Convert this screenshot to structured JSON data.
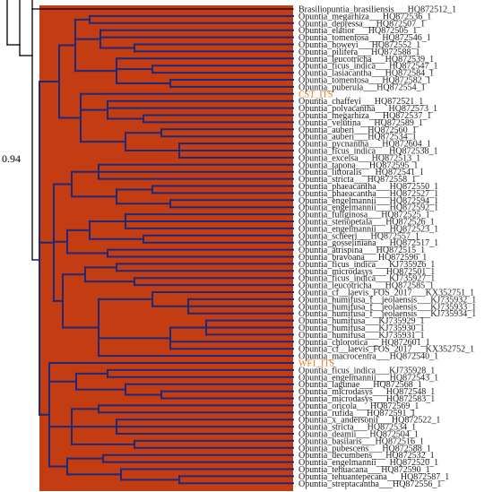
{
  "colors": {
    "clade_fill": "#c43c12",
    "branch": "#1e2a78",
    "outer_branch": "#000000",
    "highlight_label": "#e0701f",
    "label": "#222222"
  },
  "support_value": "0.94",
  "taxa": [
    {
      "label": "Brasiliopuntia_brasiliensis___HQ872512_1"
    },
    {
      "label": "Opuntia_megarhiza___HQ872536_1"
    },
    {
      "label": "Opuntia_depressa___HQ872507_1"
    },
    {
      "label": "Opuntia_elatior___HQ872505_1"
    },
    {
      "label": "Opuntia_tomentosa___HQ872546_1"
    },
    {
      "label": "Opuntia_howeyi___HQ872552_1"
    },
    {
      "label": "Opuntia_pilifera___HQ872588_1"
    },
    {
      "label": "Opuntia_leucotricha___HQ872539_1"
    },
    {
      "label": "Opuntia_ficus_indica___HQ872547_1"
    },
    {
      "label": "Opuntia_lasiacantha___HQ872584_1"
    },
    {
      "label": "Opuntia_tomentosa___HQ872582_1"
    },
    {
      "label": "Opuntia_puberula___HQ872554_1"
    },
    {
      "label": "CST_ITS",
      "highlight": true
    },
    {
      "label": "Opuntia_chaffeyi___HQ872521_1"
    },
    {
      "label": "Opuntia_polyacantha___HQ872573_1"
    },
    {
      "label": "Opuntia_megarhiza___HQ872537_1"
    },
    {
      "label": "Opuntia_velutina___HQ872589_1"
    },
    {
      "label": "Opuntia_auberi___HQ872560_1"
    },
    {
      "label": "Opuntia_auberi___HQ872534_1"
    },
    {
      "label": "Opuntia_pycnantha___HQ872604_1"
    },
    {
      "label": "Opuntia_ficus_indica___HQ872538_1"
    },
    {
      "label": "Opuntia_excelsa___HQ872513_1"
    },
    {
      "label": "Opuntia_tapona___HQ872595_1"
    },
    {
      "label": "Opuntia_littoralis___HQ872541_1"
    },
    {
      "label": "Opuntia_stricta___HQ872558_1"
    },
    {
      "label": "Opuntia_phaeacantha___HQ872550_1"
    },
    {
      "label": "Opuntia_phaeacantha___HQ872527_1"
    },
    {
      "label": "Opuntia_engelmannii___HQ872594_1"
    },
    {
      "label": "Opuntia_engelmannii___HQ872592_1"
    },
    {
      "label": "Opuntia_fuliginosa___HQ872525_1"
    },
    {
      "label": "Opuntia_stenopetala___HQ872526_1"
    },
    {
      "label": "Opuntia_engelmannii___HQ872523_1"
    },
    {
      "label": "Opuntia_scheeri___HQ872557_1"
    },
    {
      "label": "Opuntia_gosseliniana___HQ872517_1"
    },
    {
      "label": "Opuntia_atrispina___HQ872515_1"
    },
    {
      "label": "Opuntia_bravoana___HQ872596_1"
    },
    {
      "label": "Opuntia_ficus_indica___KJ735926_1"
    },
    {
      "label": "Opuntia_microdasys___HQ872501_1"
    },
    {
      "label": "Opuntia_ficus_indica___KJ735927_1"
    },
    {
      "label": "Opuntia_leucotricha___HQ872585_1"
    },
    {
      "label": "Opuntia_cf__laevis_FOS_2017___KX352751_1"
    },
    {
      "label": "Opuntia_humifusa_f__jeolaensis___KJ735932_1"
    },
    {
      "label": "Opuntia_humifusa_f__jeolaensis___KJ735933_1"
    },
    {
      "label": "Opuntia_humifusa_f__jeolaensis___KJ735934_1"
    },
    {
      "label": "Opuntia_humifusa___KJ735929_1"
    },
    {
      "label": "Opuntia_humifusa___KJ735930_1"
    },
    {
      "label": "Opuntia_humifusa___KJ735931_1"
    },
    {
      "label": "Opuntia_chlorotica___HQ872601_1"
    },
    {
      "label": "Opuntia_cf__laevis_FOS_2017___KX352752_1"
    },
    {
      "label": "Opuntia_macrocentra___HQ872540_1"
    },
    {
      "label": "WF1_ITS",
      "highlight": true
    },
    {
      "label": "Opuntia_ficus_indica___KJ735928_1"
    },
    {
      "label": "Opuntia_engelmannii___HQ872543_1"
    },
    {
      "label": "Opuntia_lagunae___HQ872568_1"
    },
    {
      "label": "Opuntia_microdasys___HQ872548_1"
    },
    {
      "label": "Opuntia_microdasys___HQ872583_1"
    },
    {
      "label": "Opuntia_oricola___HQ872569_1"
    },
    {
      "label": "Opuntia_rufida___HQ872591_1"
    },
    {
      "label": "Opuntia_x_andersonii___HQ872522_1"
    },
    {
      "label": "Opuntia_stricta___HQ872534_1"
    },
    {
      "label": "Opuntia_deamii___HQ872504_1"
    },
    {
      "label": "Opuntia_basilaris___HQ872516_1"
    },
    {
      "label": "Opuntia_pubescens___HQ872588_1"
    },
    {
      "label": "Opuntia_decumbens___HQ872532_1"
    },
    {
      "label": "Opuntia_engelmannii___HQ872520_1"
    },
    {
      "label": "Opuntia_tehuacana___HQ872590_1"
    },
    {
      "label": "Opuntia_tehuantepecana___HQ872587_1"
    },
    {
      "label": "Opuntia_streptacantha___HQ872556_1"
    }
  ]
}
